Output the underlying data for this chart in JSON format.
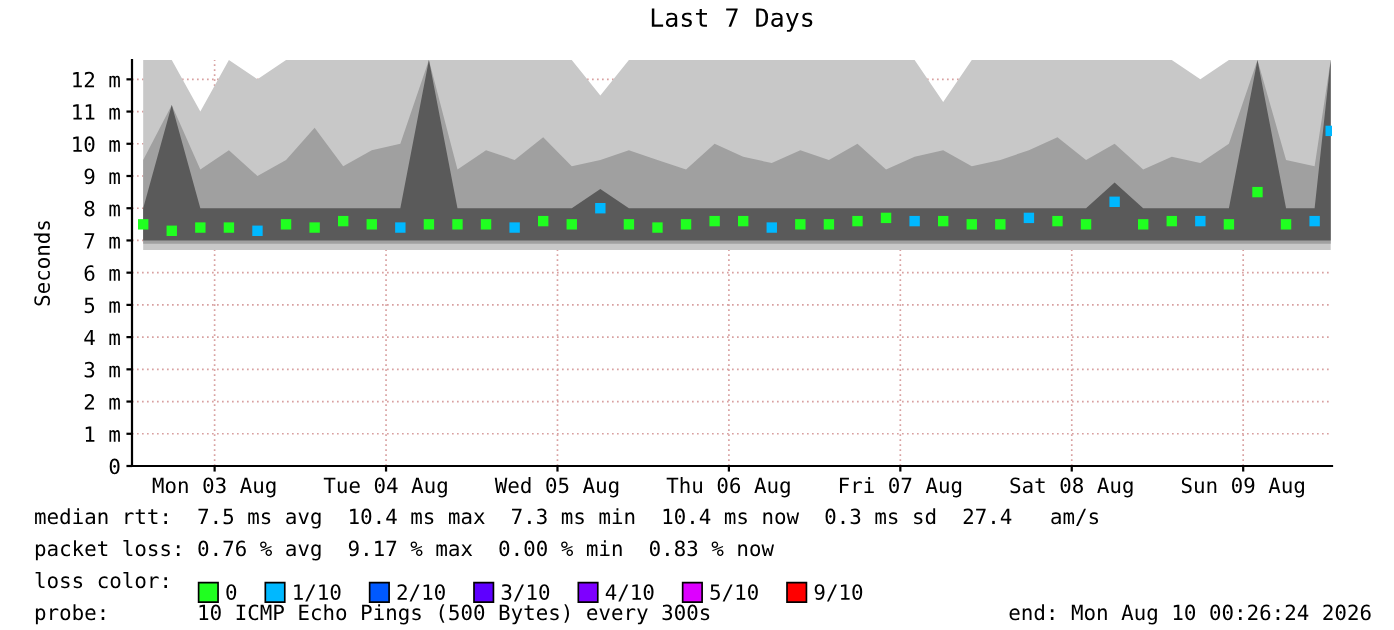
{
  "chart_data": {
    "type": "scatter",
    "title": "Last 7 Days",
    "ylabel": "Seconds",
    "x": [
      "2026-08-03T02:00",
      "2026-08-03T06:00",
      "2026-08-03T10:00",
      "2026-08-03T14:00",
      "2026-08-03T18:00",
      "2026-08-03T22:00",
      "2026-08-04T02:00",
      "2026-08-04T06:00",
      "2026-08-04T10:00",
      "2026-08-04T14:00",
      "2026-08-04T18:00",
      "2026-08-04T22:00",
      "2026-08-05T02:00",
      "2026-08-05T06:00",
      "2026-08-05T10:00",
      "2026-08-05T14:00",
      "2026-08-05T18:00",
      "2026-08-05T22:00",
      "2026-08-06T02:00",
      "2026-08-06T06:00",
      "2026-08-06T10:00",
      "2026-08-06T14:00",
      "2026-08-06T18:00",
      "2026-08-06T22:00",
      "2026-08-07T02:00",
      "2026-08-07T06:00",
      "2026-08-07T10:00",
      "2026-08-07T14:00",
      "2026-08-07T18:00",
      "2026-08-07T22:00",
      "2026-08-08T02:00",
      "2026-08-08T06:00",
      "2026-08-08T10:00",
      "2026-08-08T14:00",
      "2026-08-08T18:00",
      "2026-08-08T22:00",
      "2026-08-09T02:00",
      "2026-08-09T06:00",
      "2026-08-09T10:00",
      "2026-08-09T14:00",
      "2026-08-09T18:00",
      "2026-08-09T22:00",
      "2026-08-10T00:15"
    ],
    "series": [
      {
        "type": "line",
        "color": "#c8c8c8",
        "values": [
          null,
          null,
          null,
          null,
          null,
          null,
          null,
          null,
          null,
          null,
          null,
          null,
          null,
          null,
          null,
          null,
          null,
          null,
          null,
          null,
          null,
          null,
          null,
          null,
          null,
          null,
          null,
          null,
          null,
          null,
          null,
          null,
          null,
          null,
          null,
          null,
          null,
          null,
          null,
          null,
          null,
          null,
          null
        ],
        "lower": [
          6.7,
          6.7,
          6.7,
          6.7,
          6.7,
          6.7,
          6.7,
          6.7,
          6.7,
          6.7,
          6.7,
          6.7,
          6.7,
          6.7,
          6.7,
          6.7,
          6.7,
          6.7,
          6.7,
          6.7,
          6.7,
          6.7,
          6.7,
          6.7,
          6.7,
          6.7,
          6.7,
          6.7,
          6.7,
          6.7,
          6.7,
          6.7,
          6.7,
          6.7,
          6.7,
          6.7,
          6.7,
          6.7,
          6.7,
          6.7,
          6.7,
          6.7,
          6.7
        ],
        "upper": [
          12.6,
          12.6,
          11,
          12.6,
          12,
          12.6,
          12.6,
          12.6,
          12.6,
          12.6,
          12.6,
          12.6,
          12.6,
          12.6,
          12.6,
          12.6,
          11.5,
          12.6,
          12.6,
          12.6,
          12.6,
          12.6,
          12.6,
          12.6,
          12.6,
          12.6,
          12.6,
          12.6,
          11.3,
          12.6,
          12.6,
          12.6,
          12.6,
          12.6,
          12.6,
          12.6,
          12.6,
          12,
          12.6,
          12.6,
          12.6,
          12.6,
          12.6
        ]
      },
      {
        "type": "line",
        "color": "#a0a0a0",
        "values": [
          null,
          null,
          null,
          null,
          null,
          null,
          null,
          null,
          null,
          null,
          null,
          null,
          null,
          null,
          null,
          null,
          null,
          null,
          null,
          null,
          null,
          null,
          null,
          null,
          null,
          null,
          null,
          null,
          null,
          null,
          null,
          null,
          null,
          null,
          null,
          null,
          null,
          null,
          null,
          null,
          null,
          null,
          null
        ],
        "lower": [
          6.9,
          6.9,
          6.9,
          6.9,
          6.9,
          6.9,
          6.9,
          6.9,
          6.9,
          6.9,
          6.9,
          6.9,
          6.9,
          6.9,
          6.9,
          6.9,
          6.9,
          6.9,
          6.9,
          6.9,
          6.9,
          6.9,
          6.9,
          6.9,
          6.9,
          6.9,
          6.9,
          6.9,
          6.9,
          6.9,
          6.9,
          6.9,
          6.9,
          6.9,
          6.9,
          6.9,
          6.9,
          6.9,
          6.9,
          6.9,
          6.9,
          6.9,
          6.9
        ],
        "upper": [
          9.5,
          11.2,
          9.2,
          9.8,
          9,
          9.5,
          10.5,
          9.3,
          9.8,
          10,
          12.6,
          9.2,
          9.8,
          9.5,
          10.2,
          9.3,
          9.5,
          9.8,
          9.5,
          9.2,
          10,
          9.6,
          9.4,
          9.8,
          9.5,
          10,
          9.2,
          9.6,
          9.8,
          9.3,
          9.5,
          9.8,
          10.2,
          9.5,
          10,
          9.2,
          9.6,
          9.4,
          10,
          12.6,
          9.5,
          9.3,
          12.6
        ]
      },
      {
        "type": "line",
        "color": "#5a5a5a",
        "values": [
          null,
          null,
          null,
          null,
          null,
          null,
          null,
          null,
          null,
          null,
          null,
          null,
          null,
          null,
          null,
          null,
          null,
          null,
          null,
          null,
          null,
          null,
          null,
          null,
          null,
          null,
          null,
          null,
          null,
          null,
          null,
          null,
          null,
          null,
          null,
          null,
          null,
          null,
          null,
          null,
          null,
          null,
          null
        ],
        "lower": [
          7,
          7,
          7,
          7,
          7,
          7,
          7,
          7,
          7,
          7,
          7,
          7,
          7,
          7,
          7,
          7,
          7,
          7,
          7,
          7,
          7,
          7,
          7,
          7,
          7,
          7,
          7,
          7,
          7,
          7,
          7,
          7,
          7,
          7,
          7,
          7,
          7,
          7,
          7,
          7,
          7,
          7,
          7
        ],
        "upper": [
          8,
          11.2,
          8,
          8,
          8,
          8,
          8,
          8,
          8,
          8,
          12.6,
          8,
          8,
          8,
          8,
          8,
          8.6,
          8,
          8,
          8,
          8,
          8,
          8,
          8,
          8,
          8,
          8,
          8,
          8,
          8,
          8,
          8,
          8,
          8,
          8.8,
          8,
          8,
          8,
          8,
          12.6,
          8,
          8,
          12.6
        ]
      },
      {
        "name": "0",
        "color": "#20ff20",
        "marker": "square",
        "values": [
          7.5,
          7.3,
          7.4,
          7.4,
          null,
          7.5,
          7.4,
          7.6,
          7.5,
          null,
          7.5,
          7.5,
          7.5,
          null,
          7.6,
          7.5,
          null,
          7.5,
          7.4,
          7.5,
          7.6,
          7.6,
          null,
          7.5,
          7.5,
          7.6,
          7.7,
          null,
          7.6,
          7.5,
          7.5,
          null,
          7.6,
          7.5,
          null,
          7.5,
          7.6,
          null,
          7.5,
          8.5,
          7.5,
          null,
          null
        ]
      },
      {
        "name": "1/10",
        "color": "#00b8ff",
        "marker": "square",
        "values": [
          null,
          null,
          null,
          null,
          7.3,
          null,
          null,
          null,
          null,
          7.4,
          null,
          null,
          null,
          7.4,
          null,
          null,
          8,
          null,
          null,
          null,
          null,
          null,
          7.4,
          null,
          null,
          null,
          null,
          7.6,
          null,
          null,
          null,
          7.7,
          null,
          null,
          8.2,
          null,
          null,
          7.6,
          null,
          null,
          null,
          7.6,
          10.4
        ]
      },
      {
        "name": "2/10",
        "color": "#0059ff",
        "marker": "square",
        "values": [
          null,
          null,
          null,
          null,
          null,
          null,
          null,
          null,
          null,
          null,
          null,
          null,
          null,
          null,
          null,
          null,
          null,
          null,
          null,
          null,
          null,
          null,
          null,
          null,
          null,
          null,
          null,
          null,
          null,
          null,
          null,
          null,
          null,
          null,
          null,
          null,
          null,
          null,
          null,
          null,
          null,
          null,
          null
        ]
      },
      {
        "name": "3/10",
        "color": "#5e00ff",
        "marker": "square",
        "values": [
          null,
          null,
          null,
          null,
          null,
          null,
          null,
          null,
          null,
          null,
          null,
          null,
          null,
          null,
          null,
          null,
          null,
          null,
          null,
          null,
          null,
          null,
          null,
          null,
          null,
          null,
          null,
          null,
          null,
          null,
          null,
          null,
          null,
          null,
          null,
          null,
          null,
          null,
          null,
          null,
          null,
          null,
          null
        ]
      },
      {
        "name": "4/10",
        "color": "#7e00ff",
        "marker": "square",
        "values": [
          null,
          null,
          null,
          null,
          null,
          null,
          null,
          null,
          null,
          null,
          null,
          null,
          null,
          null,
          null,
          null,
          null,
          null,
          null,
          null,
          null,
          null,
          null,
          null,
          null,
          null,
          null,
          null,
          null,
          null,
          null,
          null,
          null,
          null,
          null,
          null,
          null,
          null,
          null,
          null,
          null,
          null,
          null
        ]
      },
      {
        "name": "5/10",
        "color": "#dd00ff",
        "marker": "square",
        "values": [
          null,
          null,
          null,
          null,
          null,
          null,
          null,
          null,
          null,
          null,
          null,
          null,
          null,
          null,
          null,
          null,
          null,
          null,
          null,
          null,
          null,
          null,
          null,
          null,
          null,
          null,
          null,
          null,
          null,
          null,
          null,
          null,
          null,
          null,
          null,
          null,
          null,
          null,
          null,
          null,
          null,
          null,
          null
        ]
      },
      {
        "name": "9/10",
        "color": "#ff0000",
        "marker": "square",
        "values": [
          null,
          null,
          null,
          null,
          null,
          null,
          null,
          null,
          null,
          null,
          null,
          null,
          null,
          null,
          null,
          null,
          null,
          null,
          null,
          null,
          null,
          null,
          null,
          null,
          null,
          null,
          null,
          null,
          null,
          null,
          null,
          null,
          null,
          null,
          null,
          null,
          null,
          null,
          null,
          null,
          null,
          null,
          null
        ]
      }
    ],
    "legend": "bottom",
    "legend_title": "loss color:",
    "grid": true,
    "xlim": [
      "2026-08-03T00:26",
      "2026-08-10T00:26"
    ],
    "xticks": [
      {
        "value": "2026-08-03T12:00",
        "label": "Mon 03 Aug"
      },
      {
        "value": "2026-08-04T12:00",
        "label": "Tue 04 Aug"
      },
      {
        "value": "2026-08-05T12:00",
        "label": "Wed 05 Aug"
      },
      {
        "value": "2026-08-06T12:00",
        "label": "Thu 06 Aug"
      },
      {
        "value": "2026-08-07T12:00",
        "label": "Fri 07 Aug"
      },
      {
        "value": "2026-08-08T12:00",
        "label": "Sat 08 Aug"
      },
      {
        "value": "2026-08-09T12:00",
        "label": "Sun 09 Aug"
      }
    ],
    "ylim": [
      0,
      12.6
    ],
    "yticks": [
      0,
      {
        "value": 1,
        "label": "1 m"
      },
      {
        "value": 2,
        "label": "2 m"
      },
      {
        "value": 3,
        "label": "3 m"
      },
      {
        "value": 4,
        "label": "4 m"
      },
      {
        "value": 5,
        "label": "5 m"
      },
      {
        "value": 6,
        "label": "6 m"
      },
      {
        "value": 7,
        "label": "7 m"
      },
      {
        "value": 8,
        "label": "8 m"
      },
      {
        "value": 9,
        "label": "9 m"
      },
      {
        "value": 10,
        "label": "10 m"
      },
      {
        "value": 11,
        "label": "11 m"
      },
      {
        "value": 12,
        "label": "12 m"
      }
    ],
    "annotations": [
      "median rtt:  7.5 ms avg  10.4 ms max  7.3 ms min  10.4 ms now  0.3 ms sd  27.4   am/s",
      "packet loss: 0.76 % avg  9.17 % max  0.00 % min  0.83 % now",
      "probe:       10 ICMP Echo Pings (500 Bytes) every 300s",
      "end: Mon Aug 10 00:26:24 2026"
    ]
  }
}
